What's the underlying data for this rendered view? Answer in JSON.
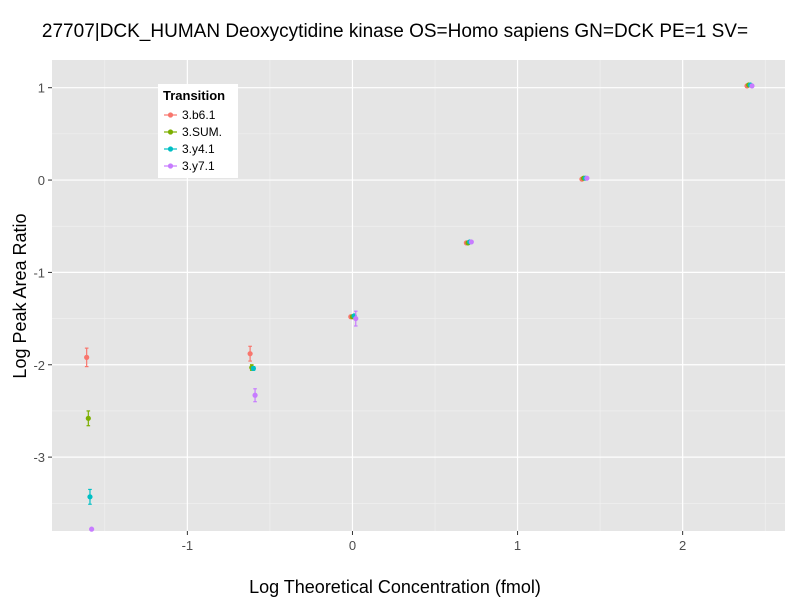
{
  "chart_data": {
    "type": "scatter",
    "title": "27707|DCK_HUMAN Deoxycytidine kinase OS=Homo sapiens GN=DCK PE=1 SV=",
    "xlabel": "Log Theoretical Concentration (fmol)",
    "ylabel": "Log Peak Area Ratio",
    "xlim": [
      -1.82,
      2.62
    ],
    "ylim": [
      -3.8,
      1.3
    ],
    "x_ticks": [
      -1,
      0,
      1,
      2
    ],
    "y_ticks": [
      -3,
      -2,
      -1,
      0,
      1
    ],
    "x_tick_labels": [
      "-1",
      "0",
      "1",
      "2"
    ],
    "y_tick_labels": [
      "-3",
      "-2",
      "-1",
      "0",
      "1"
    ],
    "grid": true,
    "legend": {
      "title": "Transition",
      "placement": "top-left"
    },
    "series": [
      {
        "name": "3.b6.1",
        "color": "#F8766D",
        "points": [
          {
            "x": -1.61,
            "y": -1.92,
            "err": 0.1
          },
          {
            "x": -0.62,
            "y": -1.88,
            "err": 0.08
          },
          {
            "x": -0.01,
            "y": -1.48,
            "err": 0.01
          },
          {
            "x": 0.69,
            "y": -0.68,
            "err": 0.01
          },
          {
            "x": 1.39,
            "y": 0.01,
            "err": 0.01
          },
          {
            "x": 2.39,
            "y": 1.02,
            "err": 0.01
          }
        ]
      },
      {
        "name": "3.SUM.",
        "color": "#7CAE00",
        "points": [
          {
            "x": -1.6,
            "y": -2.58,
            "err": 0.08
          },
          {
            "x": -0.61,
            "y": -2.03,
            "err": 0.03
          },
          {
            "x": 0.0,
            "y": -1.48,
            "err": 0.01
          },
          {
            "x": 0.7,
            "y": -0.68,
            "err": 0.01
          },
          {
            "x": 1.4,
            "y": 0.02,
            "err": 0.01
          },
          {
            "x": 2.4,
            "y": 1.03,
            "err": 0.01
          }
        ]
      },
      {
        "name": "3.y4.1",
        "color": "#00BFC4",
        "points": [
          {
            "x": -1.59,
            "y": -3.43,
            "err": 0.08
          },
          {
            "x": -0.6,
            "y": -2.04,
            "err": 0.02
          },
          {
            "x": 0.01,
            "y": -1.47,
            "err": 0.01
          },
          {
            "x": 0.71,
            "y": -0.67,
            "err": 0.01
          },
          {
            "x": 1.41,
            "y": 0.02,
            "err": 0.01
          },
          {
            "x": 2.41,
            "y": 1.03,
            "err": 0.01
          }
        ]
      },
      {
        "name": "3.y7.1",
        "color": "#C77CFF",
        "points": [
          {
            "x": -1.58,
            "y": -3.78,
            "err": 0
          },
          {
            "x": -0.59,
            "y": -2.33,
            "err": 0.07
          },
          {
            "x": 0.02,
            "y": -1.5,
            "err": 0.08
          },
          {
            "x": 0.72,
            "y": -0.67,
            "err": 0.01
          },
          {
            "x": 1.42,
            "y": 0.02,
            "err": 0.01
          },
          {
            "x": 2.42,
            "y": 1.02,
            "err": 0.01
          }
        ]
      }
    ]
  }
}
